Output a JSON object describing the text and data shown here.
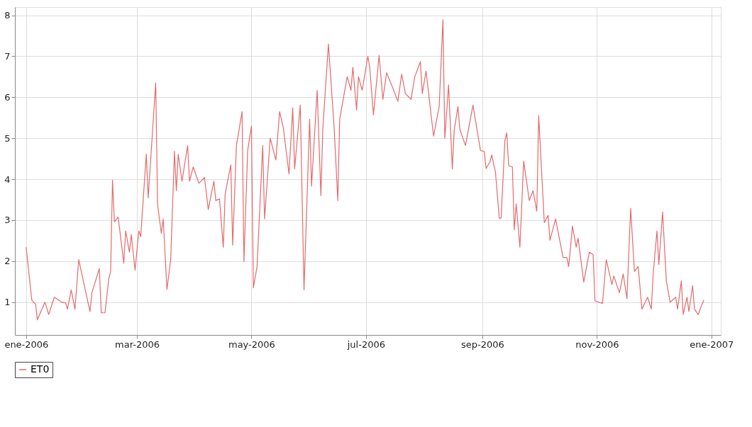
{
  "chart_data": {
    "type": "line",
    "x": [
      "2006-01-01",
      "2006-01-04",
      "2006-01-06",
      "2006-01-07",
      "2006-01-11",
      "2006-01-13",
      "2006-01-16",
      "2006-01-20",
      "2006-01-22",
      "2006-01-23",
      "2006-01-25",
      "2006-01-27",
      "2006-01-29",
      "2006-02-04",
      "2006-02-05",
      "2006-02-09",
      "2006-02-10",
      "2006-02-12",
      "2006-02-14",
      "2006-02-15",
      "2006-02-16",
      "2006-02-17",
      "2006-02-19",
      "2006-02-22",
      "2006-02-23",
      "2006-02-25",
      "2006-02-26",
      "2006-02-28",
      "2006-03-02",
      "2006-03-03",
      "2006-03-06",
      "2006-03-07",
      "2006-03-11",
      "2006-03-12",
      "2006-03-14",
      "2006-03-15",
      "2006-03-17",
      "2006-03-19",
      "2006-03-21",
      "2006-03-22",
      "2006-03-23",
      "2006-03-25",
      "2006-03-28",
      "2006-03-29",
      "2006-03-31",
      "2006-04-03",
      "2006-04-06",
      "2006-04-08",
      "2006-04-11",
      "2006-04-12",
      "2006-04-14",
      "2006-04-16",
      "2006-04-17",
      "2006-04-20",
      "2006-04-21",
      "2006-04-23",
      "2006-04-26",
      "2006-04-27",
      "2006-04-29",
      "2006-05-01",
      "2006-05-02",
      "2006-05-04",
      "2006-05-07",
      "2006-05-08",
      "2006-05-11",
      "2006-05-14",
      "2006-05-16",
      "2006-05-18",
      "2006-05-21",
      "2006-05-23",
      "2006-05-24",
      "2006-05-27",
      "2006-05-29",
      "2006-06-01",
      "2006-06-02",
      "2006-06-05",
      "2006-06-07",
      "2006-06-08",
      "2006-06-11",
      "2006-06-14",
      "2006-06-16",
      "2006-06-17",
      "2006-06-21",
      "2006-06-23",
      "2006-06-24",
      "2006-06-26",
      "2006-06-27",
      "2006-06-29",
      "2006-07-02",
      "2006-07-03",
      "2006-07-05",
      "2006-07-08",
      "2006-07-10",
      "2006-07-12",
      "2006-07-15",
      "2006-07-18",
      "2006-07-20",
      "2006-07-22",
      "2006-07-25",
      "2006-07-27",
      "2006-07-30",
      "2006-07-31",
      "2006-08-02",
      "2006-08-06",
      "2006-08-09",
      "2006-08-11",
      "2006-08-12",
      "2006-08-14",
      "2006-08-16",
      "2006-08-17",
      "2006-08-19",
      "2006-08-20",
      "2006-08-23",
      "2006-08-27",
      "2006-08-31",
      "2006-09-02",
      "2006-09-03",
      "2006-09-05",
      "2006-09-06",
      "2006-09-08",
      "2006-09-10",
      "2006-09-11",
      "2006-09-13",
      "2006-09-14",
      "2006-09-15",
      "2006-09-17",
      "2006-09-18",
      "2006-09-19",
      "2006-09-21",
      "2006-09-23",
      "2006-09-26",
      "2006-09-28",
      "2006-09-30",
      "2006-10-01",
      "2006-10-04",
      "2006-10-06",
      "2006-10-07",
      "2006-10-10",
      "2006-10-12",
      "2006-10-14",
      "2006-10-16",
      "2006-10-17",
      "2006-10-19",
      "2006-10-21",
      "2006-10-22",
      "2006-10-25",
      "2006-10-28",
      "2006-10-30",
      "2006-10-31",
      "2006-11-04",
      "2006-11-06",
      "2006-11-09",
      "2006-11-10",
      "2006-11-13",
      "2006-11-15",
      "2006-11-17",
      "2006-11-19",
      "2006-11-21",
      "2006-11-23",
      "2006-11-25",
      "2006-11-28",
      "2006-11-30",
      "2006-12-01",
      "2006-12-03",
      "2006-12-04",
      "2006-12-06",
      "2006-12-08",
      "2006-12-10",
      "2006-12-13",
      "2006-12-14",
      "2006-12-16",
      "2006-12-17",
      "2006-12-19",
      "2006-12-20",
      "2006-12-22",
      "2006-12-23",
      "2006-12-25",
      "2006-12-27",
      "2006-12-28"
    ],
    "series": [
      {
        "name": "ET0",
        "color": "#e46a6c",
        "values": [
          2.34,
          1.05,
          0.95,
          0.57,
          1.0,
          0.7,
          1.12,
          1.0,
          0.98,
          0.83,
          1.3,
          0.83,
          2.04,
          0.77,
          1.23,
          1.82,
          0.74,
          0.74,
          1.57,
          1.75,
          3.98,
          2.96,
          3.08,
          1.95,
          2.74,
          2.22,
          2.65,
          1.78,
          2.74,
          2.6,
          4.61,
          3.55,
          6.35,
          3.38,
          2.68,
          3.03,
          1.31,
          2.04,
          4.68,
          3.72,
          4.61,
          3.95,
          4.82,
          3.95,
          4.3,
          3.9,
          4.04,
          3.26,
          3.95,
          3.48,
          3.52,
          2.34,
          3.64,
          4.35,
          2.39,
          4.82,
          5.65,
          1.99,
          4.7,
          5.3,
          1.35,
          1.87,
          4.82,
          3.03,
          5.0,
          4.47,
          5.65,
          5.25,
          4.13,
          5.74,
          4.25,
          5.81,
          1.3,
          5.46,
          3.83,
          6.17,
          3.6,
          5.22,
          7.3,
          5.3,
          3.48,
          5.46,
          6.5,
          6.17,
          6.73,
          5.69,
          6.5,
          6.17,
          7.0,
          6.73,
          5.57,
          7.02,
          5.95,
          6.6,
          6.26,
          5.9,
          6.56,
          6.09,
          5.95,
          6.5,
          6.87,
          6.09,
          6.64,
          5.05,
          5.77,
          7.89,
          5.0,
          6.3,
          4.25,
          5.2,
          5.77,
          5.22,
          4.82,
          5.81,
          4.7,
          4.68,
          4.26,
          4.42,
          4.59,
          4.16,
          3.05,
          3.05,
          4.94,
          5.13,
          4.33,
          4.3,
          2.77,
          3.4,
          2.34,
          4.44,
          3.48,
          3.72,
          3.22,
          5.55,
          2.94,
          3.12,
          2.51,
          3.03,
          2.56,
          2.09,
          2.09,
          1.87,
          2.86,
          2.34,
          2.56,
          1.49,
          2.22,
          2.16,
          1.03,
          0.97,
          2.04,
          1.43,
          1.64,
          1.23,
          1.69,
          1.09,
          3.29,
          1.75,
          1.87,
          0.83,
          1.12,
          0.83,
          1.69,
          2.74,
          1.92,
          3.2,
          1.52,
          1.0,
          1.12,
          0.83,
          1.52,
          0.7,
          1.12,
          0.77,
          1.4,
          0.83,
          0.7,
          0.95,
          1.05
        ]
      }
    ],
    "xlim": [
      "2005-12-26",
      "2007-01-06"
    ],
    "xticks": [
      {
        "value": "2006-01-01",
        "label": "ene-2006"
      },
      {
        "value": "2006-03-01",
        "label": "mar-2006"
      },
      {
        "value": "2006-05-01",
        "label": "may-2006"
      },
      {
        "value": "2006-07-01",
        "label": "jul-2006"
      },
      {
        "value": "2006-09-01",
        "label": "sep-2006"
      },
      {
        "value": "2006-11-01",
        "label": "nov-2006"
      },
      {
        "value": "2007-01-01",
        "label": "ene-2007"
      }
    ],
    "ylim": [
      0.2,
      8.2
    ],
    "yticks": [
      1,
      2,
      3,
      4,
      5,
      6,
      7,
      8
    ],
    "grid": true,
    "legend": "bottom",
    "marker": "none",
    "line_style": "solid"
  }
}
